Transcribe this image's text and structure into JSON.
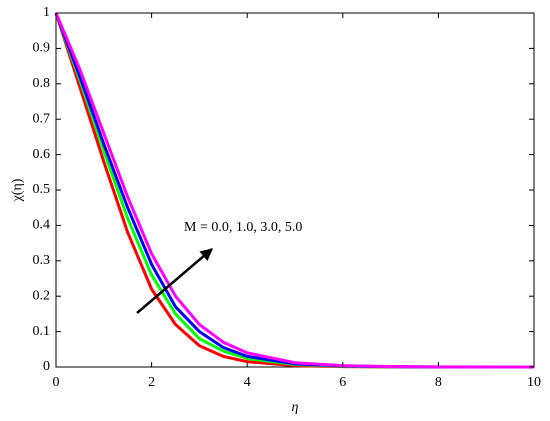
{
  "chart_data": {
    "type": "line",
    "x_label": "η",
    "y_label": "χ(η)",
    "annotation": "M = 0.0, 1.0, 3.0, 5.0",
    "x": [
      0,
      0.5,
      1,
      1.5,
      2,
      2.5,
      3,
      3.5,
      4,
      5,
      6,
      7,
      8,
      10
    ],
    "series": [
      {
        "color": "#ff0000",
        "values": [
          1,
          0.79,
          0.58,
          0.38,
          0.22,
          0.12,
          0.06,
          0.03,
          0.015,
          0.004,
          0.001,
          0,
          0,
          0
        ]
      },
      {
        "color": "#00ff00",
        "values": [
          1,
          0.81,
          0.61,
          0.42,
          0.26,
          0.15,
          0.08,
          0.045,
          0.024,
          0.007,
          0.002,
          0.0005,
          0,
          0
        ]
      },
      {
        "color": "#0000ff",
        "values": [
          1,
          0.82,
          0.63,
          0.45,
          0.29,
          0.17,
          0.1,
          0.055,
          0.03,
          0.009,
          0.003,
          0.001,
          0,
          0
        ]
      },
      {
        "color": "#ff00ff",
        "values": [
          1,
          0.84,
          0.66,
          0.48,
          0.32,
          0.2,
          0.12,
          0.07,
          0.04,
          0.012,
          0.004,
          0.001,
          0.0003,
          0
        ]
      }
    ],
    "xlim": [
      0,
      10
    ],
    "xticks": [
      0,
      2,
      4,
      6,
      8,
      10
    ],
    "ylim": [
      0,
      1
    ],
    "yticks": [
      0,
      0.1,
      0.2,
      0.3,
      0.4,
      0.5,
      0.6,
      0.7,
      0.8,
      0.9,
      1
    ],
    "grid": false
  }
}
